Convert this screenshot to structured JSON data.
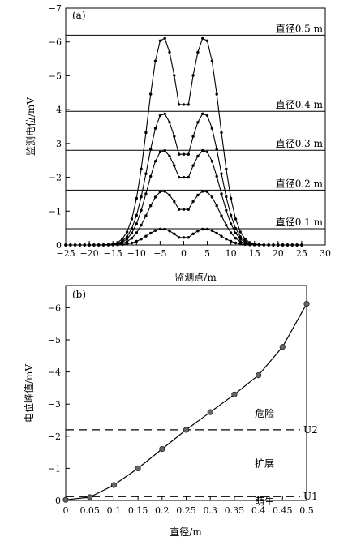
{
  "chart_data": [
    {
      "type": "line",
      "panel_label": "(a)",
      "xlabel": "监测点/m",
      "ylabel": "监测电位/mV",
      "xlim": [
        -25,
        30
      ],
      "ylim": [
        -7,
        0
      ],
      "xticks": [
        -25,
        -20,
        -15,
        -10,
        -5,
        0,
        5,
        10,
        15,
        20,
        25,
        30
      ],
      "xtick_labels": [
        "−25",
        "−20",
        "−15",
        "−10",
        "−5",
        "0",
        "5",
        "10",
        "15",
        "20",
        "25",
        "30"
      ],
      "yticks": [
        0,
        -1,
        -2,
        -3,
        -4,
        -5,
        -6,
        -7
      ],
      "ytick_labels": [
        "0",
        "−1",
        "−2",
        "−3",
        "−4",
        "−5",
        "−6",
        "−7"
      ],
      "reference_lines": [
        {
          "label": "直径0.5 m",
          "y": -6.2
        },
        {
          "label": "直径0.4 m",
          "y": -3.95
        },
        {
          "label": "直径0.3 m",
          "y": -2.8
        },
        {
          "label": "直径0.2 m",
          "y": -1.62
        },
        {
          "label": "直径0.1 m",
          "y": -0.48
        }
      ],
      "series": [
        {
          "peak": -6.15,
          "dip": -4.15
        },
        {
          "peak": -3.9,
          "dip": -2.68
        },
        {
          "peak": -2.8,
          "dip": -2.0
        },
        {
          "peak": -1.6,
          "dip": -1.05
        },
        {
          "peak": -0.48,
          "dip": -0.22
        }
      ]
    },
    {
      "type": "line",
      "panel_label": "(b)",
      "xlabel": "直径/m",
      "ylabel": "电位峰值/mV",
      "xlim": [
        0,
        0.5
      ],
      "ylim": [
        0,
        -7
      ],
      "xticks": [
        0,
        0.05,
        0.1,
        0.15,
        0.2,
        0.25,
        0.3,
        0.35,
        0.4,
        0.45,
        0.5
      ],
      "xtick_labels": [
        "0",
        "0.05",
        "0.1",
        "0.15",
        "0.2",
        "0.25",
        "0.3",
        "0.35",
        "0.4",
        "0.45",
        "0.5"
      ],
      "yticks": [
        0,
        -1,
        -2,
        -3,
        -4,
        -5,
        -6
      ],
      "ytick_labels": [
        "0",
        "−1",
        "−2",
        "−3",
        "−4",
        "−5",
        "−6"
      ],
      "x": [
        0,
        0.05,
        0.1,
        0.15,
        0.2,
        0.25,
        0.3,
        0.35,
        0.4,
        0.45,
        0.5
      ],
      "y": [
        -0.02,
        -0.1,
        -0.48,
        -1.0,
        -1.6,
        -2.2,
        -2.75,
        -3.3,
        -3.9,
        -4.78,
        -6.12
      ],
      "thresholds": [
        {
          "label": "U2",
          "y": -2.2
        },
        {
          "label": "U1",
          "y": -0.12
        }
      ],
      "zones": [
        {
          "label": "危险",
          "y": -2.7
        },
        {
          "label": "扩展",
          "y": -1.15
        },
        {
          "label": "萌生",
          "y": 0.03
        }
      ]
    }
  ]
}
